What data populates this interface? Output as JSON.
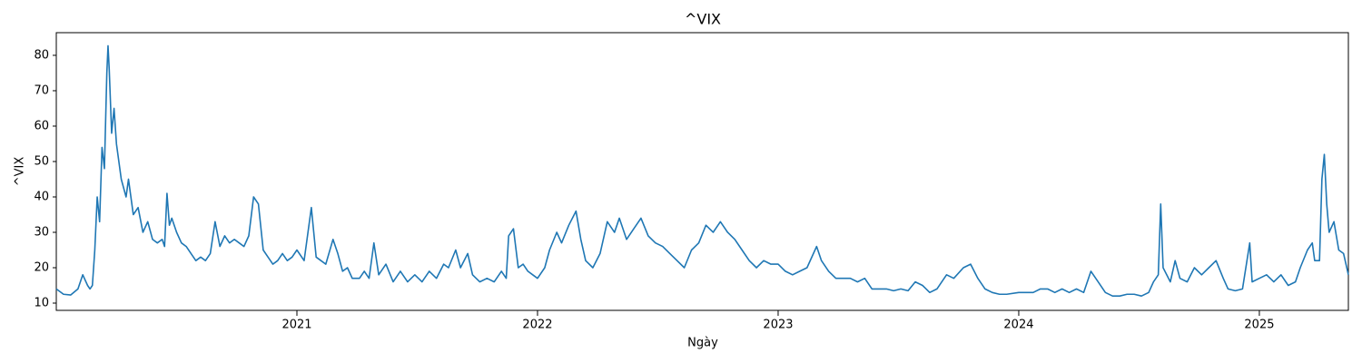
{
  "chart_data": {
    "type": "line",
    "title": "^VIX",
    "x_label": "Ngày",
    "y_label": "^VIX",
    "color": "#1f77b4",
    "xlim": [
      2020.0,
      2025.37
    ],
    "xticks": [
      2021,
      2022,
      2023,
      2024,
      2025
    ],
    "ylim": [
      7.95,
      86.4
    ],
    "yticks": [
      10,
      20,
      30,
      40,
      50,
      60,
      70,
      80
    ],
    "x": [
      2020.0,
      2020.03,
      2020.06,
      2020.09,
      2020.11,
      2020.13,
      2020.14,
      2020.15,
      2020.16,
      2020.17,
      2020.18,
      2020.19,
      2020.2,
      2020.21,
      2020.215,
      2020.22,
      2020.23,
      2020.24,
      2020.25,
      2020.27,
      2020.29,
      2020.3,
      2020.32,
      2020.34,
      2020.36,
      2020.38,
      2020.4,
      2020.42,
      2020.44,
      2020.45,
      2020.46,
      2020.47,
      2020.48,
      2020.5,
      2020.52,
      2020.54,
      2020.56,
      2020.58,
      2020.6,
      2020.62,
      2020.64,
      2020.66,
      2020.68,
      2020.7,
      2020.72,
      2020.74,
      2020.76,
      2020.78,
      2020.8,
      2020.82,
      2020.84,
      2020.86,
      2020.88,
      2020.9,
      2020.92,
      2020.94,
      2020.96,
      2020.98,
      2021.0,
      2021.03,
      2021.06,
      2021.08,
      2021.1,
      2021.12,
      2021.15,
      2021.17,
      2021.19,
      2021.21,
      2021.23,
      2021.26,
      2021.28,
      2021.3,
      2021.32,
      2021.34,
      2021.37,
      2021.4,
      2021.43,
      2021.46,
      2021.49,
      2021.52,
      2021.55,
      2021.58,
      2021.61,
      2021.63,
      2021.66,
      2021.68,
      2021.71,
      2021.73,
      2021.76,
      2021.79,
      2021.82,
      2021.85,
      2021.87,
      2021.88,
      2021.9,
      2021.92,
      2021.94,
      2021.96,
      2021.98,
      2022.0,
      2022.03,
      2022.05,
      2022.08,
      2022.1,
      2022.13,
      2022.16,
      2022.18,
      2022.2,
      2022.23,
      2022.26,
      2022.29,
      2022.32,
      2022.34,
      2022.37,
      2022.4,
      2022.43,
      2022.46,
      2022.49,
      2022.52,
      2022.55,
      2022.58,
      2022.61,
      2022.64,
      2022.67,
      2022.7,
      2022.73,
      2022.76,
      2022.79,
      2022.82,
      2022.85,
      2022.88,
      2022.91,
      2022.94,
      2022.97,
      2023.0,
      2023.03,
      2023.06,
      2023.09,
      2023.12,
      2023.16,
      2023.18,
      2023.21,
      2023.24,
      2023.27,
      2023.3,
      2023.33,
      2023.36,
      2023.39,
      2023.42,
      2023.45,
      2023.48,
      2023.51,
      2023.54,
      2023.57,
      2023.6,
      2023.63,
      2023.66,
      2023.7,
      2023.73,
      2023.77,
      2023.8,
      2023.83,
      2023.86,
      2023.89,
      2023.92,
      2023.95,
      2024.0,
      2024.03,
      2024.06,
      2024.09,
      2024.12,
      2024.15,
      2024.18,
      2024.21,
      2024.24,
      2024.27,
      2024.3,
      2024.33,
      2024.36,
      2024.39,
      2024.42,
      2024.45,
      2024.48,
      2024.51,
      2024.54,
      2024.56,
      2024.58,
      2024.59,
      2024.6,
      2024.63,
      2024.65,
      2024.67,
      2024.7,
      2024.73,
      2024.76,
      2024.79,
      2024.82,
      2024.85,
      2024.87,
      2024.9,
      2024.93,
      2024.96,
      2024.97,
      2025.0,
      2025.03,
      2025.06,
      2025.09,
      2025.12,
      2025.15,
      2025.17,
      2025.2,
      2025.22,
      2025.23,
      2025.25,
      2025.26,
      2025.27,
      2025.28,
      2025.29,
      2025.31,
      2025.33,
      2025.35,
      2025.37
    ],
    "values": [
      14,
      12.5,
      12.3,
      14,
      18,
      15,
      14,
      15,
      25,
      40,
      33,
      54,
      48,
      75,
      82.7,
      76,
      58,
      65,
      55,
      45,
      40,
      45,
      35,
      37,
      30,
      33,
      28,
      27,
      28,
      26,
      41,
      32,
      34,
      30,
      27,
      26,
      24,
      22,
      23,
      22,
      24,
      33,
      26,
      29,
      27,
      28,
      27,
      26,
      29,
      40,
      38,
      25,
      23,
      21,
      22,
      24,
      22,
      23,
      25,
      22,
      37,
      23,
      22,
      21,
      28,
      24,
      19,
      20,
      17,
      17,
      19,
      17,
      27,
      18,
      21,
      16,
      19,
      16,
      18,
      16,
      19,
      17,
      21,
      20,
      25,
      20,
      24,
      18,
      16,
      17,
      16,
      19,
      17,
      29,
      31,
      20,
      21,
      19,
      18,
      17,
      20,
      25,
      30,
      27,
      32,
      36,
      28,
      22,
      20,
      24,
      33,
      30,
      34,
      28,
      31,
      34,
      29,
      27,
      26,
      24,
      22,
      20,
      25,
      27,
      32,
      30,
      33,
      30,
      28,
      25,
      22,
      20,
      22,
      21,
      21,
      19,
      18,
      19,
      20,
      26,
      22,
      19,
      17,
      17,
      17,
      16,
      17,
      14,
      14,
      14,
      13.5,
      14,
      13.5,
      16,
      15,
      13,
      14,
      18,
      17,
      20,
      21,
      17,
      14,
      13,
      12.5,
      12.5,
      13,
      13,
      13,
      14,
      14,
      13,
      14,
      13,
      14,
      13,
      19,
      16,
      13,
      12,
      12,
      12.5,
      12.5,
      12,
      13,
      16,
      18,
      38,
      20,
      16,
      22,
      17,
      16,
      20,
      18,
      20,
      22,
      17,
      14,
      13.5,
      14,
      27,
      16,
      17,
      18,
      16,
      18,
      15,
      16,
      20,
      25,
      27,
      22,
      22,
      45,
      52,
      38,
      30,
      33,
      25,
      24,
      18
    ]
  }
}
